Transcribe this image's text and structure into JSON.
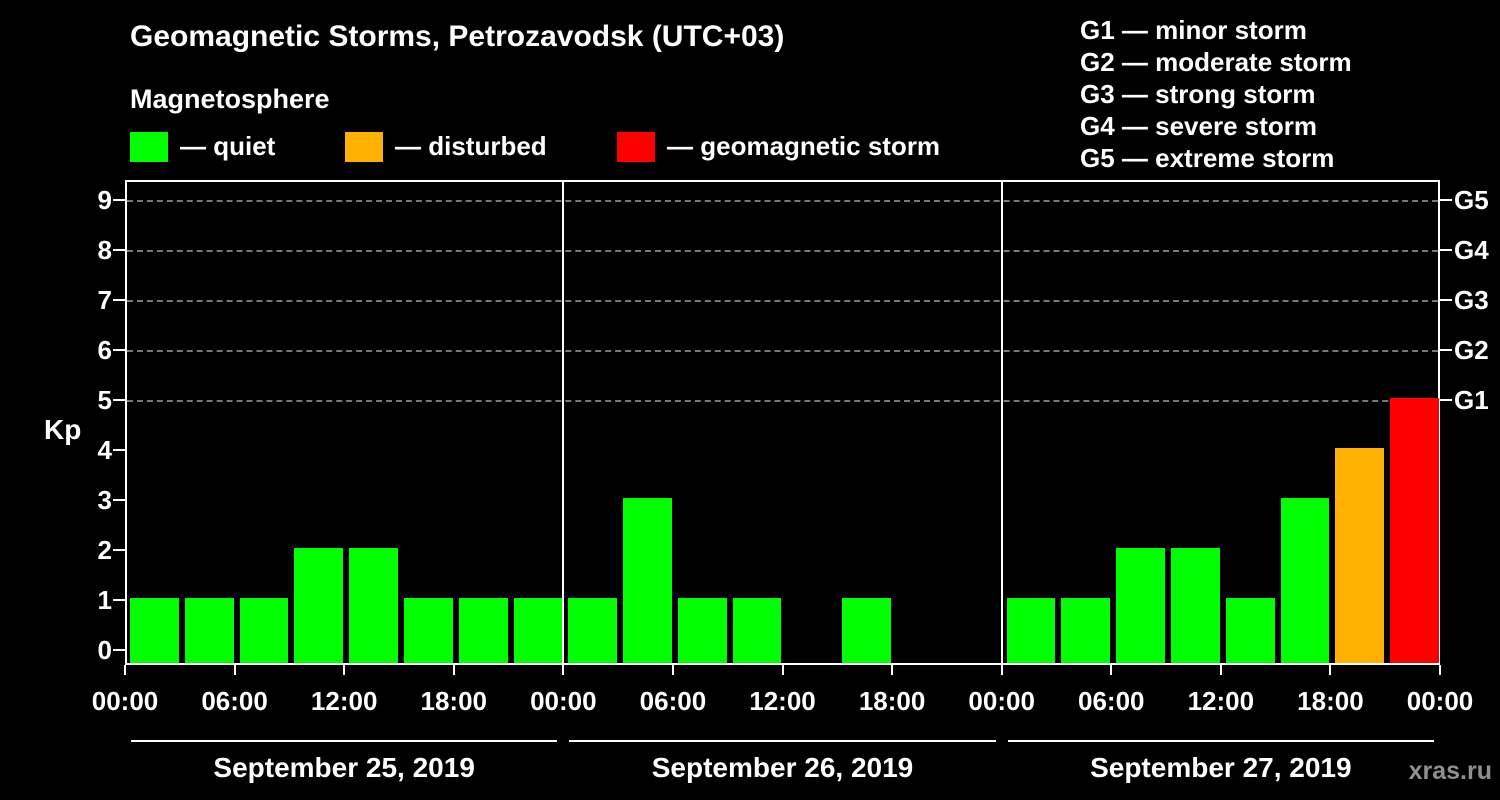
{
  "title": "Geomagnetic Storms, Petrozavodsk (UTC+03)",
  "subtitle": "Magnetosphere",
  "watermark": "xras.ru",
  "legend": {
    "items": [
      {
        "label": "— quiet",
        "color": "#00ff00"
      },
      {
        "label": "— disturbed",
        "color": "#ffb000"
      },
      {
        "label": "— geomagnetic storm",
        "color": "#ff0000"
      }
    ]
  },
  "g_legend": [
    "G1 — minor storm",
    "G2 — moderate storm",
    "G3 — strong storm",
    "G4 — severe storm",
    "G5 — extreme storm"
  ],
  "chart_data": {
    "type": "bar",
    "title": "Geomagnetic Storms, Petrozavodsk (UTC+03)",
    "ylabel": "Kp",
    "ylim": [
      0,
      9.5
    ],
    "yticks": [
      0,
      1,
      2,
      3,
      4,
      5,
      6,
      7,
      8,
      9
    ],
    "gridlines_kp": [
      5,
      6,
      7,
      8,
      9
    ],
    "g_axis": [
      {
        "kp": 5,
        "label": "G1"
      },
      {
        "kp": 6,
        "label": "G2"
      },
      {
        "kp": 7,
        "label": "G3"
      },
      {
        "kp": 8,
        "label": "G4"
      },
      {
        "kp": 9,
        "label": "G5"
      }
    ],
    "x_tick_labels": [
      "00:00",
      "06:00",
      "12:00",
      "18:00",
      "00:00",
      "06:00",
      "12:00",
      "18:00",
      "00:00",
      "06:00",
      "12:00",
      "18:00",
      "00:00"
    ],
    "bar_interval_hours": 3,
    "days": [
      {
        "date": "September 25, 2019",
        "values": [
          1,
          1,
          1,
          2,
          2,
          1,
          1,
          1
        ]
      },
      {
        "date": "September 26, 2019",
        "values": [
          1,
          3,
          1,
          1,
          0,
          1,
          0,
          0
        ]
      },
      {
        "date": "September 27, 2019",
        "values": [
          1,
          1,
          2,
          2,
          1,
          3,
          4,
          5
        ]
      }
    ],
    "colors": {
      "quiet": "#00ff00",
      "disturbed": "#ffb000",
      "storm": "#ff0000"
    },
    "color_rule": {
      "quiet_kp_max": 3,
      "disturbed_kp": 4,
      "storm_kp_min": 5
    },
    "legend_position": "top-left",
    "grid": "dashed horizontal lines at storm thresholds Kp 5-9"
  }
}
